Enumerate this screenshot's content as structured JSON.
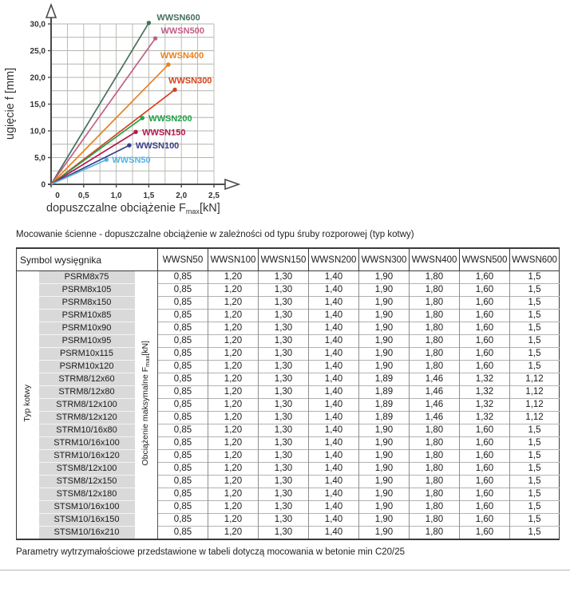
{
  "chart_data": {
    "type": "line",
    "xlabel": {
      "main": "dopuszczalne obciążenie F",
      "sub": "max",
      "unit": "[kN]"
    },
    "ylabel": "ugięcie f [mm]",
    "xlim": [
      0,
      2.5
    ],
    "ylim": [
      0,
      30
    ],
    "x_grid_step": 0.25,
    "y_grid_step": 2.5,
    "grid": true,
    "legend_position": "labels-at-points",
    "x_ticks": [
      {
        "v": 0,
        "label": "0"
      },
      {
        "v": 0.5,
        "label": "0,5"
      },
      {
        "v": 1.0,
        "label": "1,0"
      },
      {
        "v": 1.5,
        "label": "1,5"
      },
      {
        "v": 2.0,
        "label": "2,0"
      },
      {
        "v": 2.5,
        "label": "2,5"
      }
    ],
    "y_ticks": [
      {
        "v": 0,
        "label": "0"
      },
      {
        "v": 5,
        "label": "5,0"
      },
      {
        "v": 10,
        "label": "10,0"
      },
      {
        "v": 15,
        "label": "15,0"
      },
      {
        "v": 20,
        "label": "20,0"
      },
      {
        "v": 25,
        "label": "25,0"
      },
      {
        "v": 30,
        "label": "30,0"
      }
    ],
    "series": [
      {
        "name": "WWSN600",
        "color": "#46705f",
        "x": [
          0,
          1.5
        ],
        "y": [
          0,
          30.2
        ],
        "label_offset": [
          10,
          -3
        ]
      },
      {
        "name": "WWSN500",
        "color": "#c25f87",
        "x": [
          0,
          1.6
        ],
        "y": [
          0,
          27.3
        ],
        "label_offset": [
          7,
          -6
        ]
      },
      {
        "name": "WWSN400",
        "color": "#e8811e",
        "x": [
          0,
          1.8
        ],
        "y": [
          0,
          22.4
        ],
        "label_offset": [
          -10,
          -8
        ]
      },
      {
        "name": "WWSN300",
        "color": "#d4431d",
        "x": [
          0,
          1.9
        ],
        "y": [
          0,
          17.7
        ],
        "label_offset": [
          -8,
          -8
        ]
      },
      {
        "name": "WWSN200",
        "color": "#23a14b",
        "x": [
          0,
          1.4
        ],
        "y": [
          0,
          12.4
        ],
        "label_offset": [
          8,
          4
        ]
      },
      {
        "name": "WWSN150",
        "color": "#b5184d",
        "x": [
          0,
          1.3
        ],
        "y": [
          0,
          9.8
        ],
        "label_offset": [
          8,
          4
        ]
      },
      {
        "name": "WWSN100",
        "color": "#3a3e8c",
        "x": [
          0,
          1.2
        ],
        "y": [
          0,
          7.3
        ],
        "label_offset": [
          8,
          4
        ]
      },
      {
        "name": "WWSN50",
        "color": "#56b6e4",
        "x": [
          0,
          0.85
        ],
        "y": [
          0,
          4.6
        ],
        "label_offset": [
          7,
          4
        ]
      }
    ]
  },
  "caption": "Mocowanie ścienne - dopuszczalne obciążenie w zależności od typu śruby rozporowej (typ kotwy)",
  "table": {
    "corner_header": "Symbol wysięgnika",
    "col_headers": [
      "WWSN50",
      "WWSN100",
      "WWSN150",
      "WWSN200",
      "WWSN300",
      "WWSN400",
      "WWSN500",
      "WWSN600"
    ],
    "row_group_label": "Typ kotwy",
    "value_axis_label": {
      "main": "Obciążenie maksymalne F",
      "sub": "max",
      "unit": "[kN]"
    },
    "rows": [
      {
        "label": "PSRM8x75",
        "values": [
          "0,85",
          "1,20",
          "1,30",
          "1,40",
          "1,90",
          "1,80",
          "1,60",
          "1,5"
        ]
      },
      {
        "label": "PSRM8x105",
        "values": [
          "0,85",
          "1,20",
          "1,30",
          "1,40",
          "1,90",
          "1,80",
          "1,60",
          "1,5"
        ]
      },
      {
        "label": "PSRM8x150",
        "values": [
          "0,85",
          "1,20",
          "1,30",
          "1,40",
          "1,90",
          "1,80",
          "1,60",
          "1,5"
        ]
      },
      {
        "label": "PSRM10x85",
        "values": [
          "0,85",
          "1,20",
          "1,30",
          "1,40",
          "1,90",
          "1,80",
          "1,60",
          "1,5"
        ]
      },
      {
        "label": "PSRM10x90",
        "values": [
          "0,85",
          "1,20",
          "1,30",
          "1,40",
          "1,90",
          "1,80",
          "1,60",
          "1,5"
        ]
      },
      {
        "label": "PSRM10x95",
        "values": [
          "0,85",
          "1,20",
          "1,30",
          "1,40",
          "1,90",
          "1,80",
          "1,60",
          "1,5"
        ]
      },
      {
        "label": "PSRM10x115",
        "values": [
          "0,85",
          "1,20",
          "1,30",
          "1,40",
          "1,90",
          "1,80",
          "1,60",
          "1,5"
        ]
      },
      {
        "label": "PSRM10x120",
        "values": [
          "0,85",
          "1,20",
          "1,30",
          "1,40",
          "1,90",
          "1,80",
          "1,60",
          "1,5"
        ]
      },
      {
        "label": "STRM8/12x60",
        "values": [
          "0,85",
          "1,20",
          "1,30",
          "1,40",
          "1,89",
          "1,46",
          "1,32",
          "1,12"
        ]
      },
      {
        "label": "STRM8/12x80",
        "values": [
          "0,85",
          "1,20",
          "1,30",
          "1,40",
          "1,89",
          "1,46",
          "1,32",
          "1,12"
        ]
      },
      {
        "label": "STRM8/12x100",
        "values": [
          "0,85",
          "1,20",
          "1,30",
          "1,40",
          "1,89",
          "1,46",
          "1,32",
          "1,12"
        ]
      },
      {
        "label": "STRM8/12x120",
        "values": [
          "0,85",
          "1,20",
          "1,30",
          "1,40",
          "1,89",
          "1,46",
          "1,32",
          "1,12"
        ]
      },
      {
        "label": "STRM10/16x80",
        "values": [
          "0,85",
          "1,20",
          "1,30",
          "1,40",
          "1,90",
          "1,80",
          "1,60",
          "1,5"
        ]
      },
      {
        "label": "STRM10/16x100",
        "values": [
          "0,85",
          "1,20",
          "1,30",
          "1,40",
          "1,90",
          "1,80",
          "1,60",
          "1,5"
        ]
      },
      {
        "label": "STRM10/16x120",
        "values": [
          "0,85",
          "1,20",
          "1,30",
          "1,40",
          "1,90",
          "1,80",
          "1,60",
          "1,5"
        ]
      },
      {
        "label": "STSM8/12x100",
        "values": [
          "0,85",
          "1,20",
          "1,30",
          "1,40",
          "1,90",
          "1,80",
          "1,60",
          "1,5"
        ]
      },
      {
        "label": "STSM8/12x150",
        "values": [
          "0,85",
          "1,20",
          "1,30",
          "1,40",
          "1,90",
          "1,80",
          "1,60",
          "1,5"
        ]
      },
      {
        "label": "STSM8/12x180",
        "values": [
          "0,85",
          "1,20",
          "1,30",
          "1,40",
          "1,90",
          "1,80",
          "1,60",
          "1,5"
        ]
      },
      {
        "label": "STSM10/16x100",
        "values": [
          "0,85",
          "1,20",
          "1,30",
          "1,40",
          "1,90",
          "1,80",
          "1,60",
          "1,5"
        ]
      },
      {
        "label": "STSM10/16x150",
        "values": [
          "0,85",
          "1,20",
          "1,30",
          "1,40",
          "1,90",
          "1,80",
          "1,60",
          "1,5"
        ]
      },
      {
        "label": "STSM10/16x210",
        "values": [
          "0,85",
          "1,20",
          "1,30",
          "1,40",
          "1,90",
          "1,80",
          "1,60",
          "1,5"
        ]
      }
    ]
  },
  "footnote": "Parametry wytrzymałościowe przedstawione w tabeli dotyczą mocowania w betonie min C20/25"
}
